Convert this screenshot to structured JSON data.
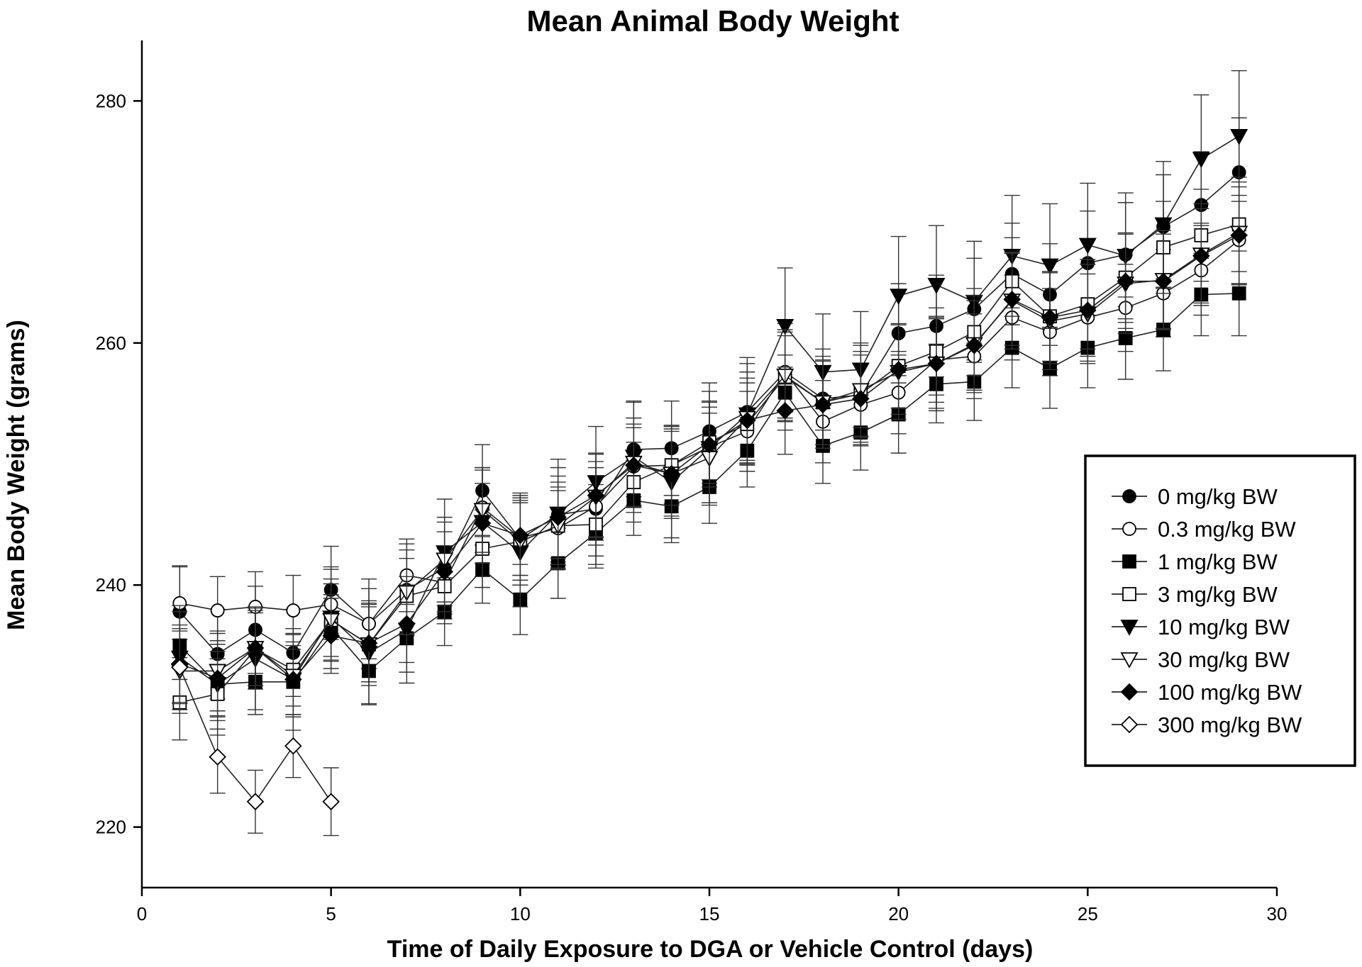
{
  "chart_data": {
    "type": "line",
    "title": "Mean Animal Body Weight",
    "xlabel": "Time of Daily Exposure to DGA or Vehicle Control (days)",
    "ylabel": "Mean Body Weight (grams)",
    "xlim": [
      0,
      30
    ],
    "ylim": [
      215,
      285
    ],
    "xticks": [
      0,
      5,
      10,
      15,
      20,
      25,
      30
    ],
    "yticks": [
      220,
      240,
      260,
      280
    ],
    "grid": false,
    "legend_position": "right",
    "series": [
      {
        "name": "0 mg/kg BW",
        "marker": "circle",
        "fill": "filled",
        "x": [
          1,
          2,
          3,
          4,
          5,
          6,
          7,
          8,
          9,
          10,
          11,
          12,
          13,
          14,
          15,
          16,
          17,
          18,
          19,
          20,
          21,
          22,
          23,
          24,
          25,
          26,
          27,
          28,
          29
        ],
        "y": [
          237.8,
          234.3,
          236.3,
          234.4,
          239.6,
          236.8,
          239.6,
          241.4,
          247.8,
          243.8,
          245.8,
          246.3,
          251.2,
          251.3,
          252.7,
          254.3,
          257.6,
          255.4,
          255.7,
          260.8,
          261.4,
          262.8,
          265.7,
          264.0,
          266.6,
          267.3,
          269.6,
          271.4,
          274.1
        ],
        "err": [
          3.8,
          3.7,
          3.6,
          3.6,
          3.6,
          3.7,
          3.8,
          3.8,
          3.8,
          3.8,
          3.9,
          3.9,
          3.9,
          3.9,
          4.0,
          4.0,
          4.0,
          4.1,
          4.1,
          4.1,
          4.2,
          4.2,
          4.2,
          4.2,
          4.3,
          4.3,
          4.3,
          4.4,
          4.5
        ]
      },
      {
        "name": "0.3 mg/kg BW",
        "marker": "circle",
        "fill": "open",
        "x": [
          1,
          2,
          3,
          4,
          5,
          6,
          7,
          8,
          9,
          10,
          11,
          12,
          13,
          14,
          15,
          16,
          17,
          18,
          19,
          20,
          21,
          22,
          23,
          24,
          25,
          26,
          27,
          28,
          29
        ],
        "y": [
          238.5,
          237.9,
          238.2,
          237.9,
          238.4,
          236.8,
          240.8,
          240.2,
          246.4,
          243.9,
          244.7,
          246.5,
          249.8,
          249.9,
          251.4,
          252.7,
          257.6,
          253.5,
          254.9,
          255.9,
          258.6,
          258.9,
          262.1,
          260.9,
          262.1,
          262.9,
          264.1,
          266.0,
          268.5
        ],
        "err": [
          3.0,
          2.8,
          2.9,
          2.9,
          2.9,
          2.9,
          3.0,
          3.0,
          3.1,
          3.1,
          3.1,
          3.2,
          3.2,
          3.2,
          3.3,
          3.3,
          3.3,
          3.4,
          3.4,
          3.4,
          3.5,
          3.5,
          3.5,
          3.6,
          3.6,
          3.6,
          3.6,
          3.7,
          3.7
        ]
      },
      {
        "name": "1 mg/kg BW",
        "marker": "square",
        "fill": "filled",
        "x": [
          1,
          2,
          3,
          4,
          5,
          6,
          7,
          8,
          9,
          10,
          11,
          12,
          13,
          14,
          15,
          16,
          17,
          18,
          19,
          20,
          21,
          22,
          23,
          24,
          25,
          26,
          27,
          28,
          29
        ],
        "y": [
          235.0,
          231.8,
          232.0,
          232.0,
          236.5,
          232.9,
          235.6,
          237.8,
          241.3,
          238.8,
          241.8,
          244.3,
          247.0,
          246.5,
          248.1,
          251.1,
          255.9,
          251.5,
          252.6,
          254.1,
          256.6,
          256.8,
          259.6,
          257.9,
          259.6,
          260.4,
          261.1,
          264.0,
          264.1
        ],
        "err": [
          2.8,
          2.7,
          2.7,
          2.7,
          2.7,
          2.7,
          2.8,
          2.8,
          2.8,
          2.9,
          2.9,
          2.9,
          2.9,
          3.0,
          3.0,
          3.0,
          3.1,
          3.1,
          3.1,
          3.2,
          3.2,
          3.2,
          3.3,
          3.3,
          3.3,
          3.4,
          3.4,
          3.4,
          3.5
        ]
      },
      {
        "name": "3 mg/kg BW",
        "marker": "square",
        "fill": "open",
        "x": [
          1,
          2,
          3,
          4,
          5,
          6,
          7,
          8,
          9,
          10,
          11,
          12,
          13,
          14,
          15,
          16,
          17,
          18,
          19,
          20,
          21,
          22,
          23,
          24,
          25,
          26,
          27,
          28,
          29
        ],
        "y": [
          230.3,
          231.0,
          234.7,
          233.0,
          237.1,
          235.1,
          239.1,
          239.9,
          243.0,
          243.6,
          244.9,
          245.0,
          248.5,
          249.9,
          251.8,
          253.3,
          257.2,
          255.1,
          255.8,
          258.1,
          259.3,
          260.9,
          265.1,
          262.2,
          263.2,
          265.4,
          267.9,
          268.9,
          269.8
        ],
        "err": [
          3.1,
          2.9,
          3.0,
          3.0,
          3.0,
          3.1,
          3.1,
          3.1,
          3.2,
          3.2,
          3.2,
          3.3,
          3.3,
          3.3,
          3.4,
          3.4,
          3.4,
          3.5,
          3.5,
          3.5,
          3.6,
          3.6,
          3.6,
          3.7,
          3.7,
          3.7,
          3.8,
          3.8,
          3.9
        ]
      },
      {
        "name": "10 mg/kg BW",
        "marker": "triangle-down",
        "fill": "filled",
        "x": [
          1,
          2,
          3,
          4,
          5,
          6,
          7,
          8,
          9,
          10,
          11,
          12,
          13,
          14,
          15,
          16,
          17,
          18,
          19,
          20,
          21,
          22,
          23,
          24,
          25,
          26,
          27,
          28,
          29
        ],
        "y": [
          234.0,
          231.8,
          233.9,
          232.2,
          237.3,
          234.4,
          236.3,
          242.7,
          245.2,
          242.7,
          245.9,
          248.5,
          250.6,
          248.5,
          251.3,
          254.1,
          261.4,
          257.6,
          257.8,
          263.9,
          264.8,
          263.4,
          267.2,
          266.4,
          268.1,
          267.2,
          269.8,
          275.2,
          277.1
        ],
        "err": [
          4.3,
          4.2,
          4.2,
          4.2,
          4.2,
          4.3,
          4.4,
          4.4,
          4.5,
          4.5,
          4.5,
          4.6,
          4.6,
          4.6,
          4.7,
          4.7,
          4.8,
          4.8,
          4.8,
          4.9,
          4.9,
          5.0,
          5.0,
          5.1,
          5.1,
          5.2,
          5.2,
          5.3,
          5.4
        ]
      },
      {
        "name": "30 mg/kg BW",
        "marker": "triangle-down",
        "fill": "open",
        "x": [
          1,
          2,
          3,
          4,
          5,
          6,
          7,
          8,
          9,
          10,
          11,
          12,
          13,
          14,
          15,
          16,
          17,
          18,
          19,
          20,
          21,
          22,
          23,
          24,
          25,
          26,
          27,
          28,
          29
        ],
        "y": [
          232.9,
          232.9,
          234.8,
          232.5,
          237.1,
          235.1,
          239.4,
          242.1,
          246.2,
          243.6,
          244.9,
          247.3,
          250.1,
          249.2,
          250.5,
          253.8,
          257.3,
          255.1,
          256.1,
          257.6,
          258.3,
          259.9,
          263.5,
          261.8,
          262.4,
          264.9,
          265.2,
          267.3,
          269.1
        ],
        "err": [
          3.5,
          3.3,
          3.4,
          3.4,
          3.4,
          3.4,
          3.5,
          3.5,
          3.5,
          3.6,
          3.6,
          3.6,
          3.7,
          3.7,
          3.7,
          3.8,
          3.8,
          3.8,
          3.9,
          3.9,
          3.9,
          4.0,
          4.0,
          4.0,
          4.1,
          4.1,
          4.1,
          4.2,
          4.2
        ]
      },
      {
        "name": "100 mg/kg BW",
        "marker": "diamond",
        "fill": "filled",
        "x": [
          1,
          2,
          3,
          4,
          5,
          6,
          7,
          8,
          9,
          10,
          11,
          12,
          13,
          14,
          15,
          16,
          17,
          18,
          19,
          20,
          21,
          22,
          23,
          24,
          25,
          26,
          27,
          28,
          29
        ],
        "y": [
          233.5,
          232.3,
          234.8,
          232.2,
          235.8,
          235.2,
          236.8,
          241.1,
          245.1,
          244.1,
          245.6,
          247.4,
          249.9,
          249.2,
          251.6,
          253.6,
          254.4,
          254.9,
          255.4,
          257.8,
          258.3,
          259.8,
          263.6,
          262.1,
          262.7,
          265.1,
          265.1,
          267.2,
          268.9
        ],
        "err": [
          3.2,
          3.1,
          3.1,
          3.1,
          3.1,
          3.2,
          3.2,
          3.3,
          3.3,
          3.3,
          3.4,
          3.4,
          3.4,
          3.5,
          3.5,
          3.5,
          3.6,
          3.6,
          3.6,
          3.7,
          3.7,
          3.7,
          3.8,
          3.8,
          3.8,
          3.9,
          3.9,
          3.9,
          4.0
        ]
      },
      {
        "name": "300 mg/kg BW",
        "marker": "diamond",
        "fill": "open",
        "x": [
          1,
          2,
          3,
          4,
          5
        ],
        "y": [
          233.2,
          225.8,
          222.1,
          226.7,
          222.1
        ],
        "err": [
          3.0,
          3.0,
          2.6,
          2.6,
          2.8
        ]
      }
    ]
  }
}
